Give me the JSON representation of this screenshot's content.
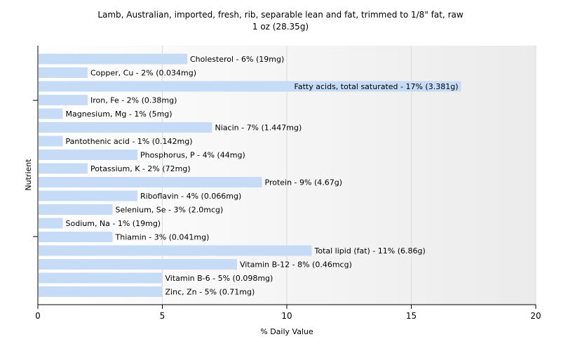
{
  "chart_data": {
    "type": "bar",
    "orientation": "horizontal",
    "title": "Lamb, Australian, imported, fresh, rib, separable lean and fat, trimmed to 1/8\" fat, raw",
    "subtitle": "1 oz (28.35g)",
    "xlabel": "% Daily Value",
    "ylabel": "Nutrient",
    "xlim": [
      0,
      20
    ],
    "xticks": [
      0,
      5,
      10,
      15,
      20
    ],
    "grid": true,
    "bar_color": "#c6dbf5",
    "categories": [
      "Cholesterol",
      "Copper, Cu",
      "Fatty acids, total saturated",
      "Iron, Fe",
      "Magnesium, Mg",
      "Niacin",
      "Pantothenic acid",
      "Phosphorus, P",
      "Potassium, K",
      "Protein",
      "Riboflavin",
      "Selenium, Se",
      "Sodium, Na",
      "Thiamin",
      "Total lipid (fat)",
      "Vitamin B-12",
      "Vitamin B-6",
      "Zinc, Zn"
    ],
    "values": [
      6,
      2,
      17,
      2,
      1,
      7,
      1,
      4,
      2,
      9,
      4,
      3,
      1,
      3,
      11,
      8,
      5,
      5
    ],
    "labels": [
      "Cholesterol - 6% (19mg)",
      "Copper, Cu - 2% (0.034mg)",
      "Fatty acids, total saturated - 17% (3.381g)",
      "Iron, Fe - 2% (0.38mg)",
      "Magnesium, Mg - 1% (5mg)",
      "Niacin - 7% (1.447mg)",
      "Pantothenic acid - 1% (0.142mg)",
      "Phosphorus, P - 4% (44mg)",
      "Potassium, K - 2% (72mg)",
      "Protein - 9% (4.67g)",
      "Riboflavin - 4% (0.066mg)",
      "Selenium, Se - 3% (2.0mcg)",
      "Sodium, Na - 1% (19mg)",
      "Thiamin - 3% (0.041mg)",
      "Total lipid (fat) - 11% (6.86g)",
      "Vitamin B-12 - 8% (0.46mcg)",
      "Vitamin B-6 - 5% (0.098mg)",
      "Zinc, Zn - 5% (0.71mg)"
    ]
  }
}
